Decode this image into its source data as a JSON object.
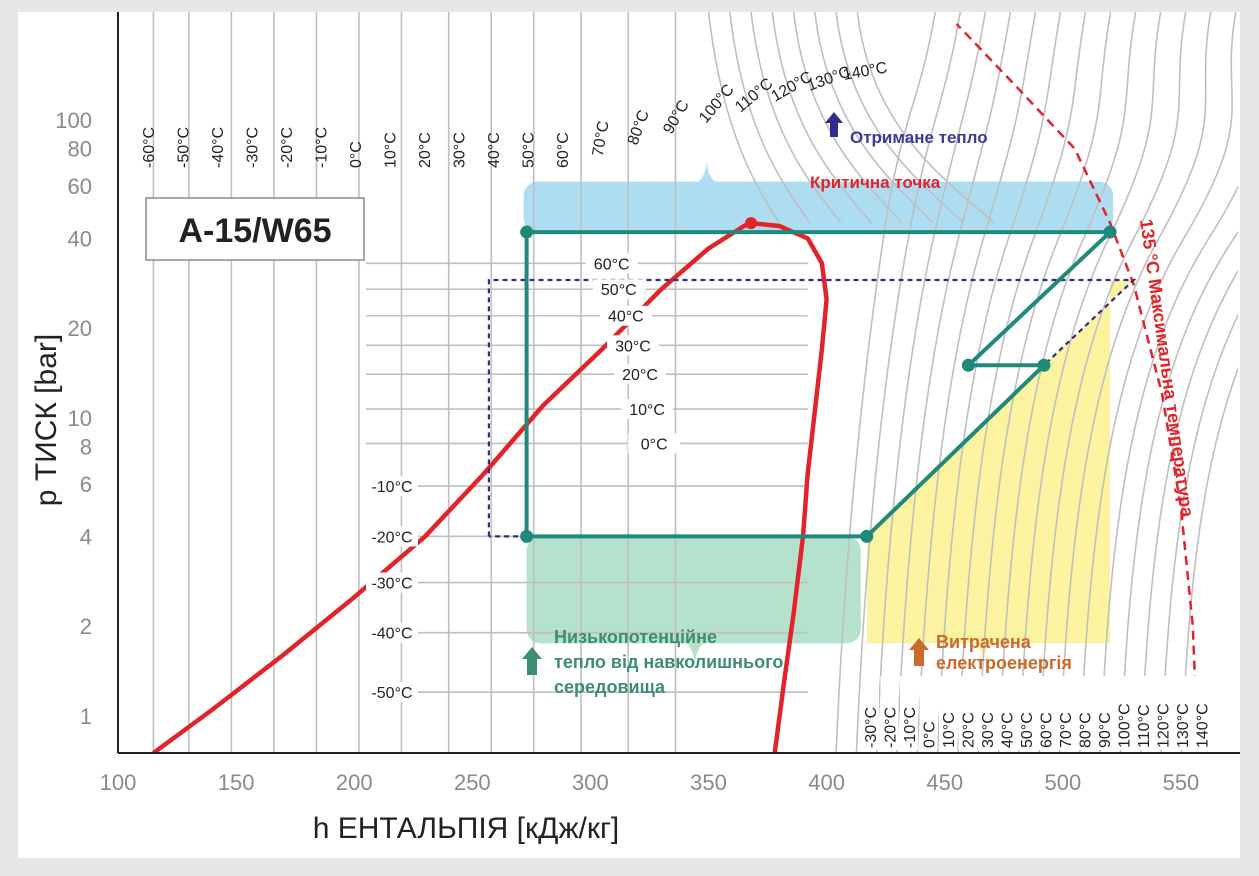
{
  "chart_data": {
    "type": "line",
    "title": "",
    "model_label": "A-15/W65",
    "xlabel": "h ЕНТАЛЬПІЯ [кДж/кг]",
    "ylabel": "p ТИСК [bar]",
    "xlim": [
      100,
      575
    ],
    "ylim": [
      0.75,
      230
    ],
    "y_scale": "log",
    "x_ticks": [
      100,
      150,
      200,
      250,
      300,
      350,
      400,
      450,
      500,
      550
    ],
    "y_ticks": [
      {
        "value": 1,
        "label": "1"
      },
      {
        "value": 2,
        "label": "2"
      },
      {
        "value": 4,
        "label": "4"
      },
      {
        "value": 6,
        "label": "6"
      },
      {
        "value": 8,
        "label": "8"
      },
      {
        "value": 10,
        "label": "10"
      },
      {
        "value": 20,
        "label": "20"
      },
      {
        "value": 40,
        "label": "40"
      },
      {
        "value": 60,
        "label": "60"
      },
      {
        "value": 80,
        "label": "80"
      },
      {
        "value": 100,
        "label": "100"
      }
    ],
    "saturation_dome": {
      "liquid": [
        [
          115,
          0.75
        ],
        [
          140,
          1.05
        ],
        [
          170,
          1.6
        ],
        [
          200,
          2.5
        ],
        [
          230,
          4
        ],
        [
          255,
          6.5
        ],
        [
          280,
          11
        ],
        [
          305,
          17
        ],
        [
          330,
          27
        ],
        [
          350,
          37
        ],
        [
          365,
          44
        ],
        [
          368,
          45
        ]
      ],
      "vapor": [
        [
          368,
          45
        ],
        [
          380,
          44
        ],
        [
          392,
          40
        ],
        [
          398,
          33
        ],
        [
          400,
          25
        ],
        [
          398,
          17
        ],
        [
          395,
          10.5
        ],
        [
          392,
          6.5
        ],
        [
          390,
          4
        ],
        [
          386,
          2.2
        ],
        [
          382,
          1.3
        ],
        [
          378,
          0.75
        ]
      ],
      "critical_point": [
        368,
        45
      ],
      "critical_label": "Критична точка"
    },
    "isotherms_horizontal": [
      {
        "label": "60°C",
        "p": 33
      },
      {
        "label": "50°C",
        "p": 27
      },
      {
        "label": "40°C",
        "p": 22
      },
      {
        "label": "30°C",
        "p": 17.5
      },
      {
        "label": "20°C",
        "p": 14
      },
      {
        "label": "10°C",
        "p": 10.7
      },
      {
        "label": "0°C",
        "p": 8.2
      },
      {
        "label": "-10°C",
        "p": 5.9
      },
      {
        "label": "-20°C",
        "p": 4.0
      },
      {
        "label": "-30°C",
        "p": 2.8
      },
      {
        "label": "-40°C",
        "p": 1.9
      },
      {
        "label": "-50°C",
        "p": 1.2
      }
    ],
    "top_temperature_labels": [
      "-60°C",
      "-50°C",
      "-40°C",
      "-30°C",
      "-20°C",
      "-10°C",
      "0°C",
      "10°C",
      "20°C",
      "30°C",
      "40°C",
      "50°C",
      "60°C",
      "70°C",
      "80°C",
      "90°C",
      "100°C",
      "110°C",
      "120°C",
      "130°C",
      "140°C"
    ],
    "bottom_temperature_labels": [
      "-30°C",
      "-20°C",
      "-10°C",
      "0°C",
      "10°C",
      "20°C",
      "30°C",
      "40°C",
      "50°C",
      "60°C",
      "70°C",
      "80°C",
      "90°C",
      "100°C",
      "110°C",
      "120°C",
      "130°C",
      "140°C"
    ],
    "series": [
      {
        "style": "solid-teal",
        "points": [
          [
            273,
            4
          ],
          [
            273,
            42
          ],
          [
            520,
            42
          ],
          [
            460,
            15
          ],
          [
            492,
            15
          ],
          [
            417,
            4
          ],
          [
            273,
            4
          ]
        ]
      },
      {
        "style": "dashed-navy",
        "points": [
          [
            257,
            4
          ],
          [
            257,
            29
          ],
          [
            530,
            29
          ],
          [
            492,
            15
          ],
          [
            417,
            4
          ],
          [
            257,
            4
          ]
        ]
      }
    ],
    "max_temp_curve": [
      [
        557,
        0.8
      ],
      [
        555,
        2
      ],
      [
        550,
        5
      ],
      [
        542,
        12
      ],
      [
        530,
        28
      ],
      [
        520,
        45
      ],
      [
        505,
        80
      ],
      [
        480,
        130
      ],
      [
        455,
        210
      ]
    ],
    "annotations": {
      "heat_out": "Отримане тепло",
      "critical": "Критична точка",
      "low_heat": [
        "Низькопотенційне",
        "тепло від навколишнього",
        "середовища"
      ],
      "electric": [
        "Витрачена",
        "електроенергія"
      ],
      "max_temp": "135 °C Максимальна температура"
    },
    "legend": "none",
    "grid": false
  },
  "colors": {
    "dome": "#e2232a",
    "cycle": "#1f8a7a",
    "dashed_cycle": "#2e2e8a",
    "heat_out_fill": "#aeddf2",
    "low_heat_fill": "#b5e2cc",
    "electric_fill": "#fbf3a0",
    "isotherm": "#bfbfbf",
    "axis_text": "#8a8a8a"
  }
}
